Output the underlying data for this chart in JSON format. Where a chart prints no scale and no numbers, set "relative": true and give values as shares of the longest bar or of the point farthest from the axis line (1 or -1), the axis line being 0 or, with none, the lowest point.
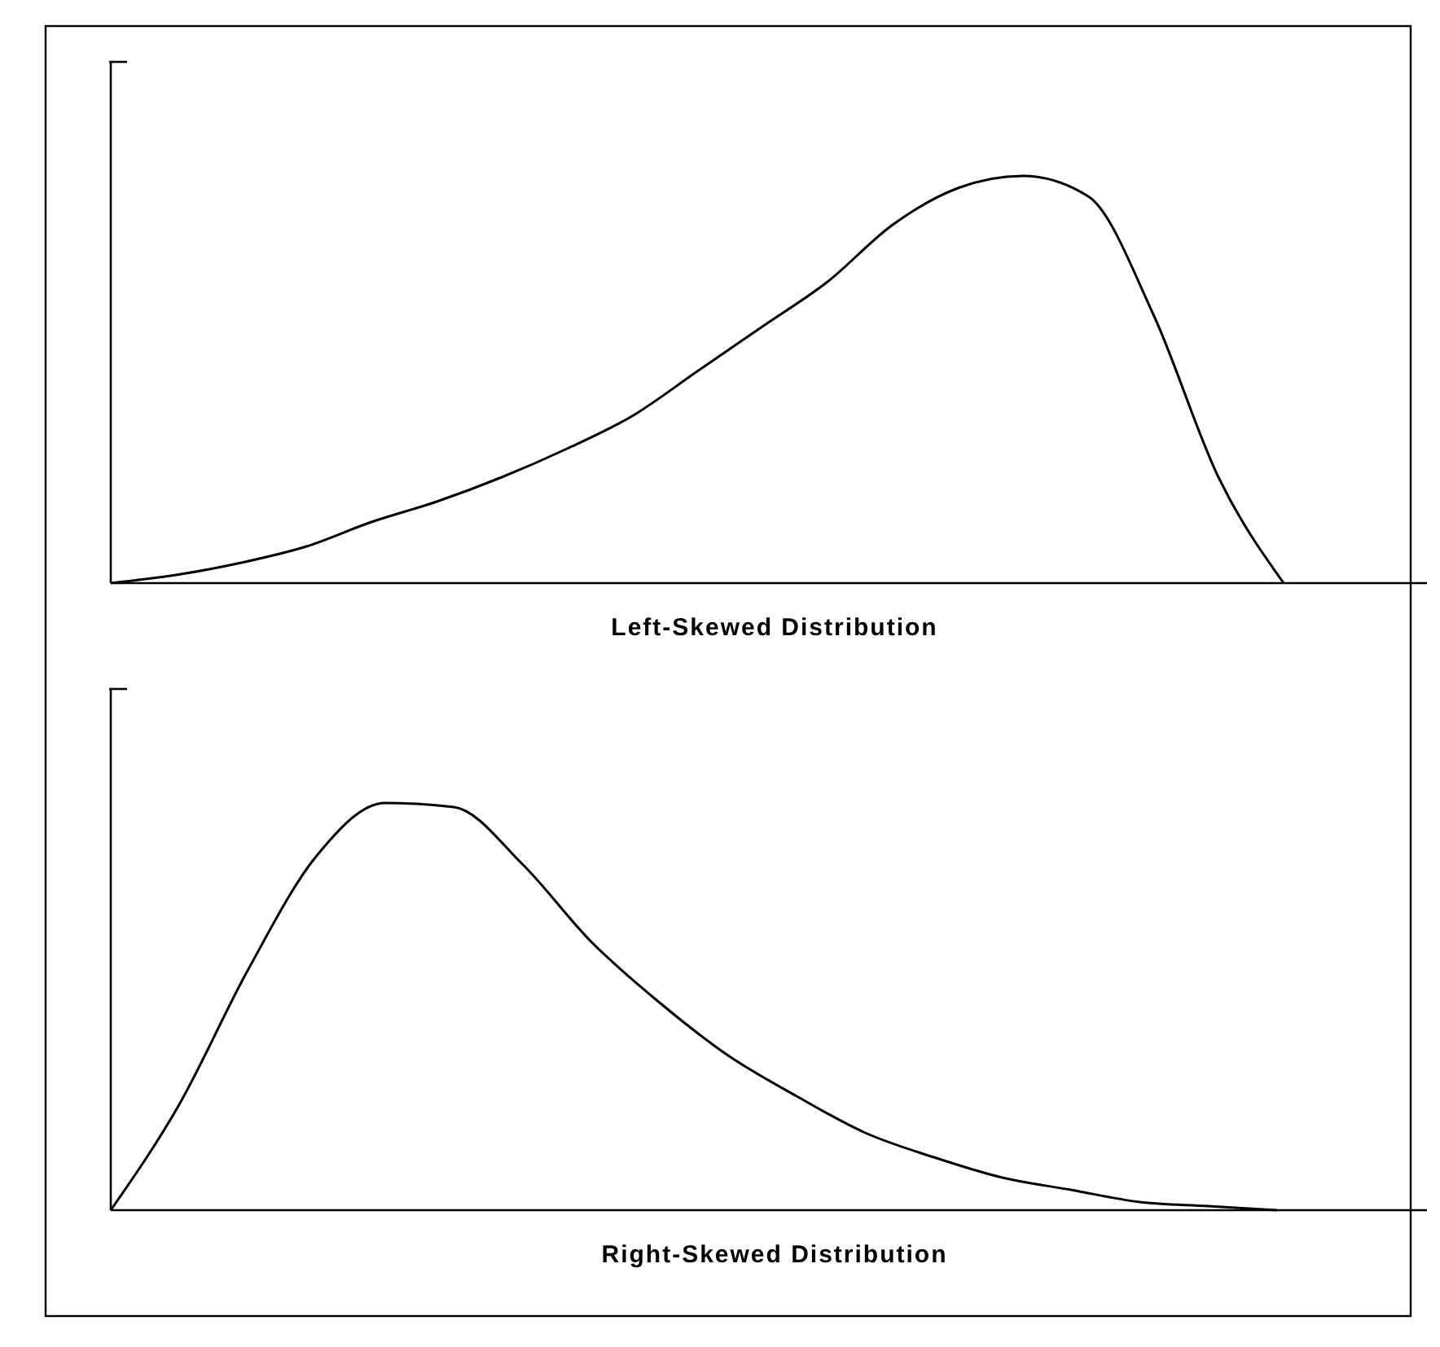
{
  "chart_data": [
    {
      "type": "line",
      "xlabel": "Left-Skewed Distribution",
      "relative": true,
      "color": "#000000",
      "categories": [
        null,
        null,
        null,
        null,
        null,
        null,
        null,
        null,
        null,
        null,
        null,
        null,
        null,
        null,
        null,
        null,
        null,
        null,
        null,
        null,
        null
      ],
      "values": [
        0,
        0.02,
        0.05,
        0.09,
        0.15,
        0.2,
        0.26,
        0.33,
        0.41,
        0.52,
        0.63,
        0.74,
        0.88,
        0.97,
        1,
        0.95,
        0.66,
        0.26,
        0,
        null,
        null
      ]
    },
    {
      "type": "line",
      "xlabel": "Right-Skewed Distribution",
      "relative": true,
      "color": "#000000",
      "categories": [
        null,
        null,
        null,
        null,
        null,
        null,
        null,
        null,
        null,
        null,
        null,
        null,
        null,
        null,
        null,
        null,
        null,
        null,
        null,
        null
      ],
      "values": [
        0,
        0.26,
        0.59,
        0.87,
        1,
        0.99,
        0.85,
        0.66,
        0.51,
        0.38,
        0.28,
        0.19,
        0.13,
        0.08,
        0.05,
        0.02,
        0.01,
        0,
        null,
        null
      ]
    }
  ]
}
